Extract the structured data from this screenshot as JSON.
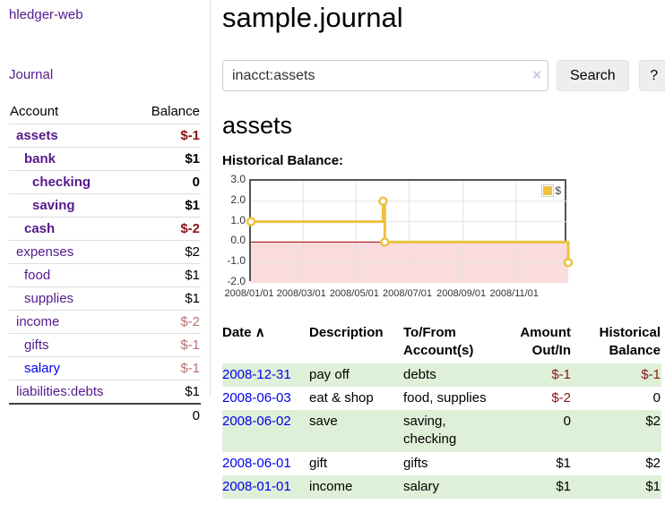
{
  "sidebar": {
    "brand": "hledger-web",
    "journal_link": "Journal",
    "accounts_table": {
      "headers": {
        "account": "Account",
        "balance": "Balance"
      },
      "rows": [
        {
          "account": "assets",
          "balance": "$-1",
          "indent": 1,
          "bold": true,
          "balance_class": "neg-strong"
        },
        {
          "account": "bank",
          "balance": "$1",
          "indent": 2,
          "bold": true,
          "balance_class": "pos"
        },
        {
          "account": "checking",
          "balance": "0",
          "indent": 3,
          "bold": true,
          "balance_class": "pos"
        },
        {
          "account": "saving",
          "balance": "$1",
          "indent": 3,
          "bold": true,
          "balance_class": "pos"
        },
        {
          "account": "cash",
          "balance": "$-2",
          "indent": 2,
          "bold": true,
          "balance_class": "neg-strong"
        },
        {
          "account": "expenses",
          "balance": "$2",
          "indent": 1,
          "bold": false,
          "balance_class": "pos"
        },
        {
          "account": "food",
          "balance": "$1",
          "indent": 2,
          "bold": false,
          "balance_class": "pos"
        },
        {
          "account": "supplies",
          "balance": "$1",
          "indent": 2,
          "bold": false,
          "balance_class": "pos"
        },
        {
          "account": "income",
          "balance": "$-2",
          "indent": 1,
          "bold": false,
          "balance_class": "neg-soft"
        },
        {
          "account": "gifts",
          "balance": "$-1",
          "indent": 2,
          "bold": false,
          "balance_class": "neg-soft"
        },
        {
          "account": "salary",
          "balance": "$-1",
          "indent": 2,
          "bold": false,
          "balance_class": "neg-soft",
          "link_class": "unvisited"
        },
        {
          "account": "liabilities:debts",
          "balance": "$1",
          "indent": 1,
          "bold": false,
          "balance_class": "pos"
        }
      ],
      "total": "0"
    }
  },
  "header": {
    "title": "sample.journal"
  },
  "search": {
    "value": "inacct:assets",
    "clear_icon": "×",
    "search_label": "Search",
    "help_label": "?"
  },
  "main": {
    "account_title": "assets",
    "chart_label": "Historical Balance:"
  },
  "chart_data": {
    "type": "line",
    "step": true,
    "title": "Historical Balance",
    "legend": "$",
    "legend_position": "top-right",
    "grid": true,
    "line_color": "#edc240",
    "negative_region_color": "#fadcdc",
    "zero_line_color": "#aa0000",
    "ylim": [
      -2,
      3
    ],
    "yticks": [
      "3.0",
      "2.0",
      "1.0",
      "0.0",
      "-1.0",
      "-2.0"
    ],
    "xticks": [
      "2008/01/01",
      "2008/03/01",
      "2008/05/01",
      "2008/07/01",
      "2008/09/01",
      "2008/11/01"
    ],
    "x_start": "2008-01-01",
    "x_end": "2008-12-31",
    "series": [
      {
        "name": "$",
        "points": [
          {
            "x": "2008-01-01",
            "y": 1
          },
          {
            "x": "2008-06-01",
            "y": 2
          },
          {
            "x": "2008-06-03",
            "y": 0
          },
          {
            "x": "2008-12-31",
            "y": -1
          }
        ]
      }
    ]
  },
  "register": {
    "headers": {
      "date": "Date",
      "sort_icon": "∧",
      "description": "Description",
      "accounts": "To/From Account(s)",
      "amount": "Amount Out/In",
      "balance": "Historical Balance"
    },
    "rows": [
      {
        "date": "2008-12-31",
        "description": "pay off",
        "accounts": "debts",
        "amount": "$-1",
        "balance": "$-1",
        "amount_neg": true,
        "balance_neg": true
      },
      {
        "date": "2008-06-03",
        "description": "eat & shop",
        "accounts": "food, supplies",
        "amount": "$-2",
        "balance": "0",
        "amount_neg": true,
        "balance_neg": false
      },
      {
        "date": "2008-06-02",
        "description": "save",
        "accounts": "saving, checking",
        "amount": "0",
        "balance": "$2",
        "amount_neg": false,
        "balance_neg": false
      },
      {
        "date": "2008-06-01",
        "description": "gift",
        "accounts": "gifts",
        "amount": "$1",
        "balance": "$2",
        "amount_neg": false,
        "balance_neg": false
      },
      {
        "date": "2008-01-01",
        "description": "income",
        "accounts": "salary",
        "amount": "$1",
        "balance": "$1",
        "amount_neg": false,
        "balance_neg": false
      }
    ]
  }
}
